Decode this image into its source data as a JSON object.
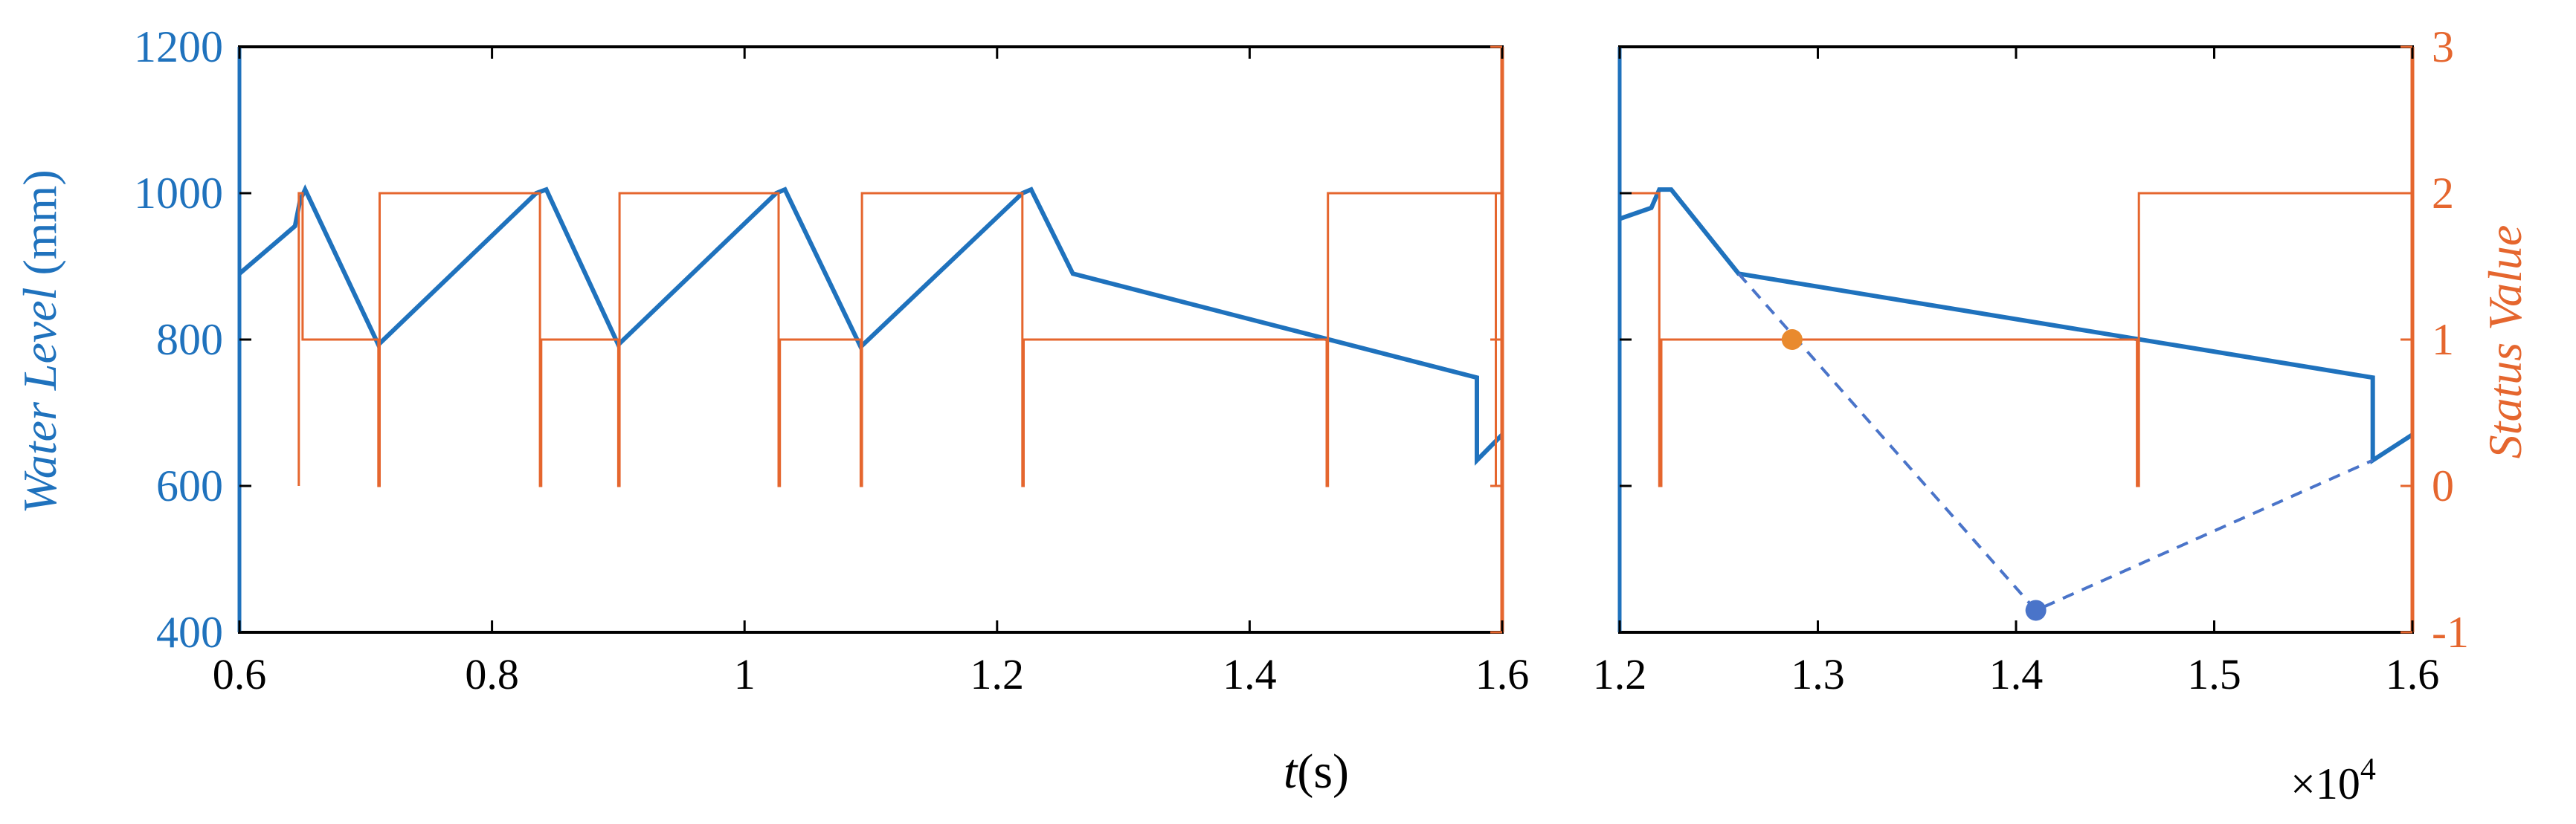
{
  "colors": {
    "water": "#1f72bd",
    "status": "#e5662e",
    "dashed": "#4a74c9",
    "orange_marker": "#e98a2e",
    "axis": "#000000"
  },
  "chart_data": [
    {
      "type": "line",
      "panel": "left",
      "xlabel_prefix": "t",
      "xlabel_unit": "(s)",
      "x_tick_labels": [
        "0.6",
        "0.8",
        "1",
        "1.2",
        "1.4",
        "1.6"
      ],
      "x_ticks_scaled": [
        0.6,
        0.8,
        1.0,
        1.2,
        1.4,
        1.6
      ],
      "x_multiplier": 10000,
      "xlim": [
        6000,
        16000
      ],
      "ylabel_left_italic": "Water Level",
      "ylabel_left_unit": "(mm)",
      "ylim_left": [
        400,
        1200
      ],
      "y_ticks_left": [
        "400",
        "600",
        "800",
        "1000",
        "1200"
      ],
      "ylim_right": [
        -1,
        3
      ],
      "series": [
        {
          "axis": "left",
          "style": "solid-thick",
          "x": [
            6000,
            6440,
            6480,
            6520,
            7100,
            8350,
            8430,
            9000,
            10250,
            10320,
            10920,
            12200,
            12270,
            12600,
            15800,
            15800,
            16000
          ],
          "y": [
            890,
            955,
            990,
            1005,
            793,
            1000,
            1005,
            793,
            1000,
            1005,
            790,
            1000,
            1005,
            890,
            748,
            635,
            670
          ]
        },
        {
          "axis": "right",
          "style": "solid-thin",
          "x": [
            6470,
            6470,
            6500,
            6500,
            7100,
            7100,
            7110,
            7110,
            8380,
            8380,
            8390,
            8390,
            9000,
            9000,
            9010,
            9010,
            10270,
            10270,
            10280,
            10280,
            10920,
            10920,
            10930,
            10930,
            12200,
            12200,
            12210,
            12210,
            14610,
            14610,
            14620,
            14620,
            15950,
            15950
          ],
          "y": [
            0,
            2,
            2,
            1,
            1,
            0,
            0,
            2,
            2,
            0,
            0,
            1,
            1,
            0,
            0,
            2,
            2,
            0,
            0,
            1,
            1,
            0,
            0,
            2,
            2,
            0,
            0,
            1,
            1,
            0,
            0,
            2,
            2,
            0
          ]
        }
      ]
    },
    {
      "type": "line",
      "panel": "right",
      "x_tick_labels": [
        "1.2",
        "1.3",
        "1.4",
        "1.5",
        "1.6"
      ],
      "x_ticks_scaled": [
        1.2,
        1.3,
        1.4,
        1.5,
        1.6
      ],
      "x_multiplier": 10000,
      "x_multiplier_text": "×10",
      "x_multiplier_exp": "4",
      "xlim": [
        12000,
        16000
      ],
      "ylim_left": [
        400,
        1200
      ],
      "ylabel_right": "Status Value",
      "ylim_right": [
        -1,
        3
      ],
      "y_ticks_right": [
        "-1",
        "0",
        "1",
        "2",
        "3"
      ],
      "series": [
        {
          "axis": "left",
          "style": "solid-thick",
          "x": [
            12000,
            12160,
            12200,
            12260,
            12600,
            15800,
            15800,
            16000
          ],
          "y": [
            965,
            980,
            1005,
            1005,
            890,
            748,
            635,
            670
          ]
        },
        {
          "axis": "left",
          "style": "dashed",
          "x": [
            12600,
            14100,
            15800
          ],
          "y": [
            890,
            430,
            635
          ]
        },
        {
          "axis": "right",
          "style": "solid-thin",
          "x": [
            12000,
            12200,
            12200,
            12210,
            12210,
            14610,
            14610,
            14620,
            14620,
            15950
          ],
          "y": [
            2,
            2,
            0,
            0,
            1,
            1,
            0,
            0,
            2,
            2
          ]
        }
      ],
      "markers": [
        {
          "axis": "right",
          "x": 12870,
          "y": 1,
          "color": "orange"
        },
        {
          "axis": "left",
          "x": 14100,
          "y": 430,
          "color": "blue"
        }
      ]
    }
  ]
}
